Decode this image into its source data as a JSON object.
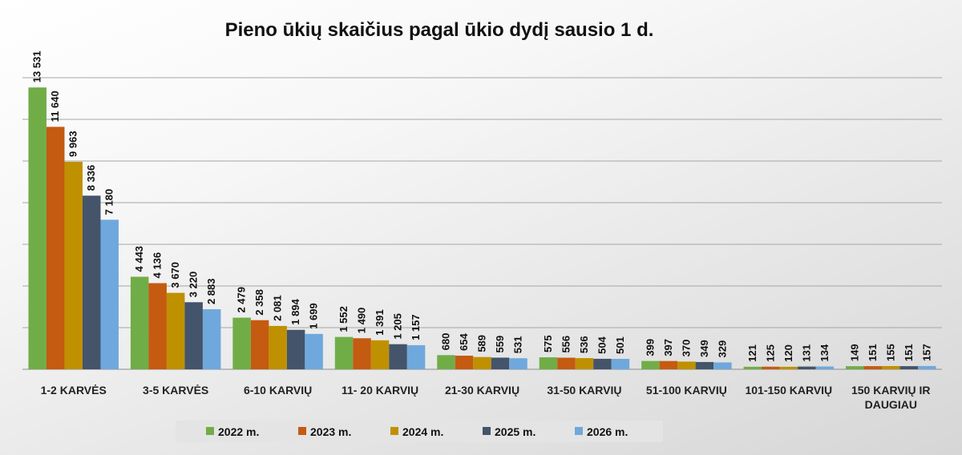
{
  "chart_data": {
    "type": "bar",
    "title": "Pieno ūkių skaičius pagal ūkio dydį sausio 1 d.",
    "xlabel": "",
    "ylabel": "",
    "ylim": [
      0,
      14000
    ],
    "grid": true,
    "legend_position": "bottom",
    "categories": [
      [
        "1-2 KARVĖS"
      ],
      [
        "3-5 KARVĖS"
      ],
      [
        "6-10 KARVIŲ"
      ],
      [
        "11- 20 KARVIŲ"
      ],
      [
        "21-30 KARVIŲ"
      ],
      [
        "31-50 KARVIŲ"
      ],
      [
        "51-100 KARVIŲ"
      ],
      [
        "101-150 KARVIŲ"
      ],
      [
        "150 KARVIŲ IR",
        "DAUGIAU"
      ]
    ],
    "series": [
      {
        "name": "2022 m.",
        "color": "#70ad47",
        "values": [
          13531,
          4443,
          2479,
          1552,
          680,
          575,
          399,
          121,
          149
        ],
        "labels": [
          "13 531",
          "4 443",
          "2 479",
          "1 552",
          "680",
          "575",
          "399",
          "121",
          "149"
        ]
      },
      {
        "name": "2023 m.",
        "color": "#c55a11",
        "values": [
          11640,
          4136,
          2358,
          1490,
          654,
          556,
          397,
          125,
          151
        ],
        "labels": [
          "11 640",
          "4 136",
          "2 358",
          "1 490",
          "654",
          "556",
          "397",
          "125",
          "151"
        ]
      },
      {
        "name": "2024 m.",
        "color": "#bf9000",
        "values": [
          9963,
          3670,
          2081,
          1391,
          589,
          536,
          370,
          120,
          155
        ],
        "labels": [
          "9 963",
          "3 670",
          "2 081",
          "1 391",
          "589",
          "536",
          "370",
          "120",
          "155"
        ]
      },
      {
        "name": "2025 m.",
        "color": "#44546a",
        "values": [
          8336,
          3220,
          1894,
          1205,
          559,
          504,
          349,
          131,
          151
        ],
        "labels": [
          "8 336",
          "3 220",
          "1 894",
          "1 205",
          "559",
          "504",
          "349",
          "131",
          "151"
        ]
      },
      {
        "name": "2026 m.",
        "color": "#6fa8dc",
        "values": [
          7180,
          2883,
          1699,
          1157,
          531,
          501,
          329,
          134,
          157
        ],
        "labels": [
          "7 180",
          "2 883",
          "1 699",
          "1 157",
          "531",
          "501",
          "329",
          "134",
          "157"
        ]
      }
    ]
  }
}
